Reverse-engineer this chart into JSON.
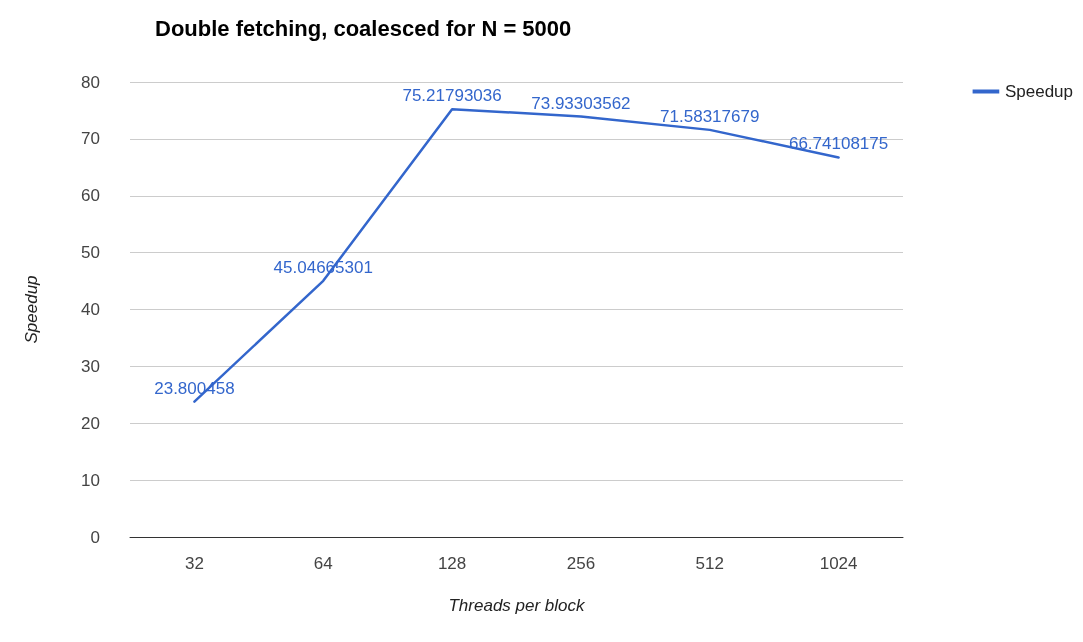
{
  "chart_data": {
    "type": "line",
    "title": "Double fetching, coalesced for N = 5000",
    "xlabel": "Threads per block",
    "ylabel": "Speedup",
    "categories": [
      "32",
      "64",
      "128",
      "256",
      "512",
      "1024"
    ],
    "series": [
      {
        "name": "Speedup",
        "color": "#3366cc",
        "values": [
          23.800458,
          45.04665301,
          75.21793036,
          73.93303562,
          71.58317679,
          66.74108175
        ]
      }
    ],
    "ylim": [
      0,
      80
    ],
    "yticks": [
      0,
      10,
      20,
      30,
      40,
      50,
      60,
      70,
      80
    ],
    "grid": "y",
    "legend": "top right",
    "marker": "none",
    "line_style": "solid",
    "data_labels": true
  }
}
